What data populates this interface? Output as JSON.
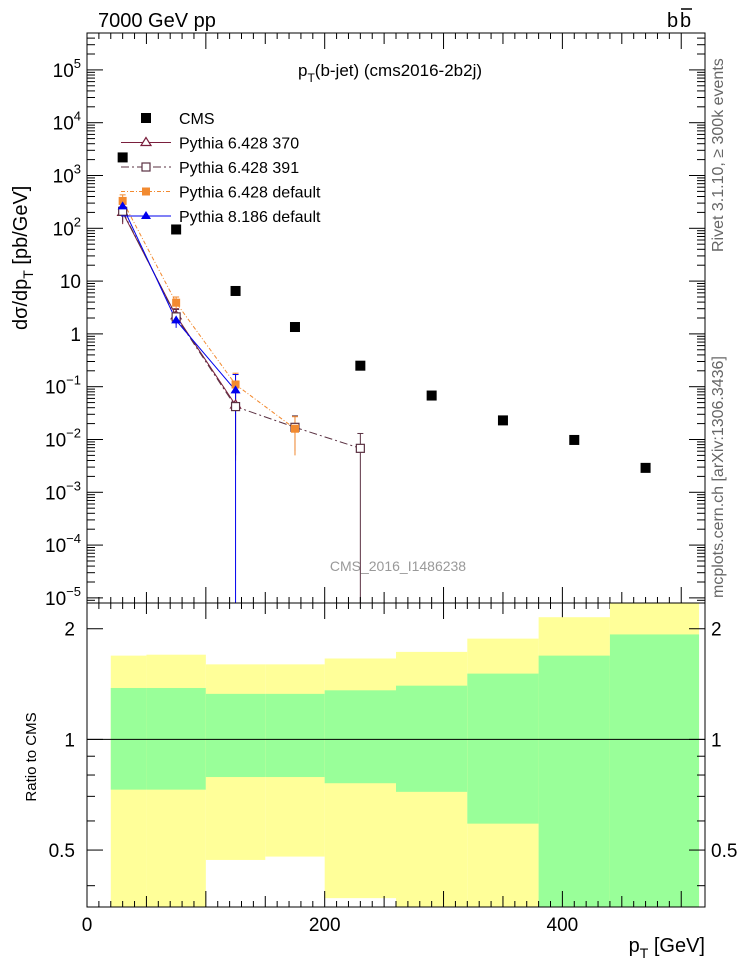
{
  "header": {
    "left": "7000 GeV pp",
    "right_prefix": "b",
    "right_bar": "b"
  },
  "side_labels": {
    "top": "Rivet 3.1.10, ≥ 300k events",
    "bottom": "mcplots.cern.ch [arXiv:1306.3436]"
  },
  "chart_data": [
    {
      "type": "scatter",
      "panel": "main",
      "title_main": "p",
      "title_sub": "T",
      "title_rest": "(b-jet) (cms2016-2b2j)",
      "watermark": "CMS_2016_I1486238",
      "yscale": "log",
      "xlim": [
        0,
        520
      ],
      "ylim": [
        8e-06,
        500000
      ],
      "ylabel_parts": {
        "a": "dσ/dp",
        "sub": "T",
        "b": " [pb/GeV]"
      },
      "y_ticks": [
        {
          "v": 100000.0,
          "base": "10",
          "exp": "5"
        },
        {
          "v": 10000.0,
          "base": "10",
          "exp": "4"
        },
        {
          "v": 1000.0,
          "base": "10",
          "exp": "3"
        },
        {
          "v": 100.0,
          "base": "10",
          "exp": "2"
        },
        {
          "v": 10,
          "base": "10",
          "exp": ""
        },
        {
          "v": 1,
          "base": "1",
          "exp": ""
        },
        {
          "v": 0.1,
          "base": "10",
          "exp": "−1"
        },
        {
          "v": 0.01,
          "base": "10",
          "exp": "−2"
        },
        {
          "v": 0.001,
          "base": "10",
          "exp": "−3"
        },
        {
          "v": 0.0001,
          "base": "10",
          "exp": "−4"
        },
        {
          "v": 1e-05,
          "base": "10",
          "exp": "−5"
        }
      ],
      "legend": [
        {
          "label": "CMS",
          "marker": "square-filled",
          "color": "#000000"
        },
        {
          "label": "Pythia 6.428 370",
          "marker": "triangle-open",
          "color": "#7a1f3d",
          "dash": ""
        },
        {
          "label": "Pythia 6.428 391",
          "marker": "square-open",
          "color": "#5a3142",
          "dash": "8,3,2,3"
        },
        {
          "label": "Pythia 6.428 default",
          "marker": "square-filled",
          "color": "#f28a30",
          "dash": "4,2,1,2"
        },
        {
          "label": "Pythia 8.186 default",
          "marker": "triangle-filled",
          "color": "#0000ee",
          "dash": ""
        }
      ],
      "series": [
        {
          "name": "CMS",
          "color": "#000000",
          "marker": "square-filled",
          "line": false,
          "x": [
            30,
            75,
            125,
            175,
            230,
            290,
            350,
            410,
            470
          ],
          "y": [
            2200,
            95,
            6.5,
            1.35,
            0.25,
            0.068,
            0.023,
            0.0098,
            0.0029
          ]
        },
        {
          "name": "Pythia 6.428 370",
          "color": "#7a1f3d",
          "marker": "triangle-open",
          "line": true,
          "dash": "",
          "x": [
            30,
            75,
            125
          ],
          "y": [
            200,
            2.2,
            0.045
          ],
          "err": [
            [
              120,
              300
            ],
            [
              1.6,
              3.0
            ],
            [
              0.005,
              0.12
            ]
          ]
        },
        {
          "name": "Pythia 6.428 391",
          "color": "#5a3142",
          "marker": "square-open",
          "line": true,
          "dash": "8,3,2,3",
          "x": [
            30,
            75,
            125,
            175,
            230
          ],
          "y": [
            210,
            2.1,
            0.042,
            0.017,
            0.0068
          ],
          "err": [
            [
              130,
              320
            ],
            [
              1.5,
              2.9
            ],
            [
              0.004,
              0.1
            ],
            [
              0.006,
              0.028
            ],
            [
              5e-06,
              0.013
            ]
          ]
        },
        {
          "name": "Pythia 6.428 default",
          "color": "#f28a30",
          "marker": "square-filled",
          "line": true,
          "dash": "4,2,1,2",
          "x": [
            30,
            75,
            125,
            175
          ],
          "y": [
            330,
            3.9,
            0.11,
            0.016
          ],
          "err": [
            [
              240,
              430
            ],
            [
              3.0,
              5.0
            ],
            [
              0.05,
              0.18
            ],
            [
              0.005,
              0.027
            ]
          ]
        },
        {
          "name": "Pythia 8.186 default",
          "color": "#0000ee",
          "marker": "triangle-filled",
          "line": true,
          "dash": "",
          "x": [
            30,
            75,
            125
          ],
          "y": [
            260,
            1.8,
            0.085
          ],
          "err": [
            [
              180,
              360
            ],
            [
              1.3,
              2.4
            ],
            [
              5e-06,
              0.17
            ]
          ]
        }
      ]
    },
    {
      "type": "area",
      "panel": "ratio",
      "ylabel": "Ratio to CMS",
      "xlabel_main": "p",
      "xlabel_sub": "T",
      "xlabel_rest": " [GeV]",
      "xlim": [
        0,
        520
      ],
      "ylim": [
        0.35,
        2.35
      ],
      "x_ticks": [
        "0",
        "200",
        "400"
      ],
      "x_tick_values": [
        0,
        200,
        400
      ],
      "y_ticks": [
        "0.5",
        "1",
        "2"
      ],
      "y_tick_values": [
        0.5,
        1,
        2
      ],
      "bands": [
        {
          "x0": 20,
          "x1": 50,
          "green": [
            0.73,
            1.38
          ],
          "yellow": [
            0.35,
            1.69
          ]
        },
        {
          "x0": 50,
          "x1": 100,
          "green": [
            0.73,
            1.38
          ],
          "yellow": [
            0.35,
            1.7
          ]
        },
        {
          "x0": 100,
          "x1": 150,
          "green": [
            0.79,
            1.33
          ],
          "yellow": [
            0.47,
            1.6
          ]
        },
        {
          "x0": 150,
          "x1": 200,
          "green": [
            0.79,
            1.33
          ],
          "yellow": [
            0.48,
            1.6
          ]
        },
        {
          "x0": 200,
          "x1": 260,
          "green": [
            0.76,
            1.36
          ],
          "yellow": [
            0.37,
            1.66
          ]
        },
        {
          "x0": 260,
          "x1": 320,
          "green": [
            0.72,
            1.4
          ],
          "yellow": [
            0.35,
            1.73
          ]
        },
        {
          "x0": 320,
          "x1": 380,
          "green": [
            0.59,
            1.51
          ],
          "yellow": [
            0.35,
            1.88
          ]
        },
        {
          "x0": 380,
          "x1": 440,
          "green": [
            0.35,
            1.69
          ],
          "yellow": [
            0.35,
            2.15
          ]
        },
        {
          "x0": 440,
          "x1": 515,
          "green": [
            0.35,
            1.93
          ],
          "yellow": [
            0.35,
            2.35
          ]
        }
      ],
      "colors": {
        "green": "#99ff99",
        "yellow": "#ffff99"
      }
    }
  ]
}
